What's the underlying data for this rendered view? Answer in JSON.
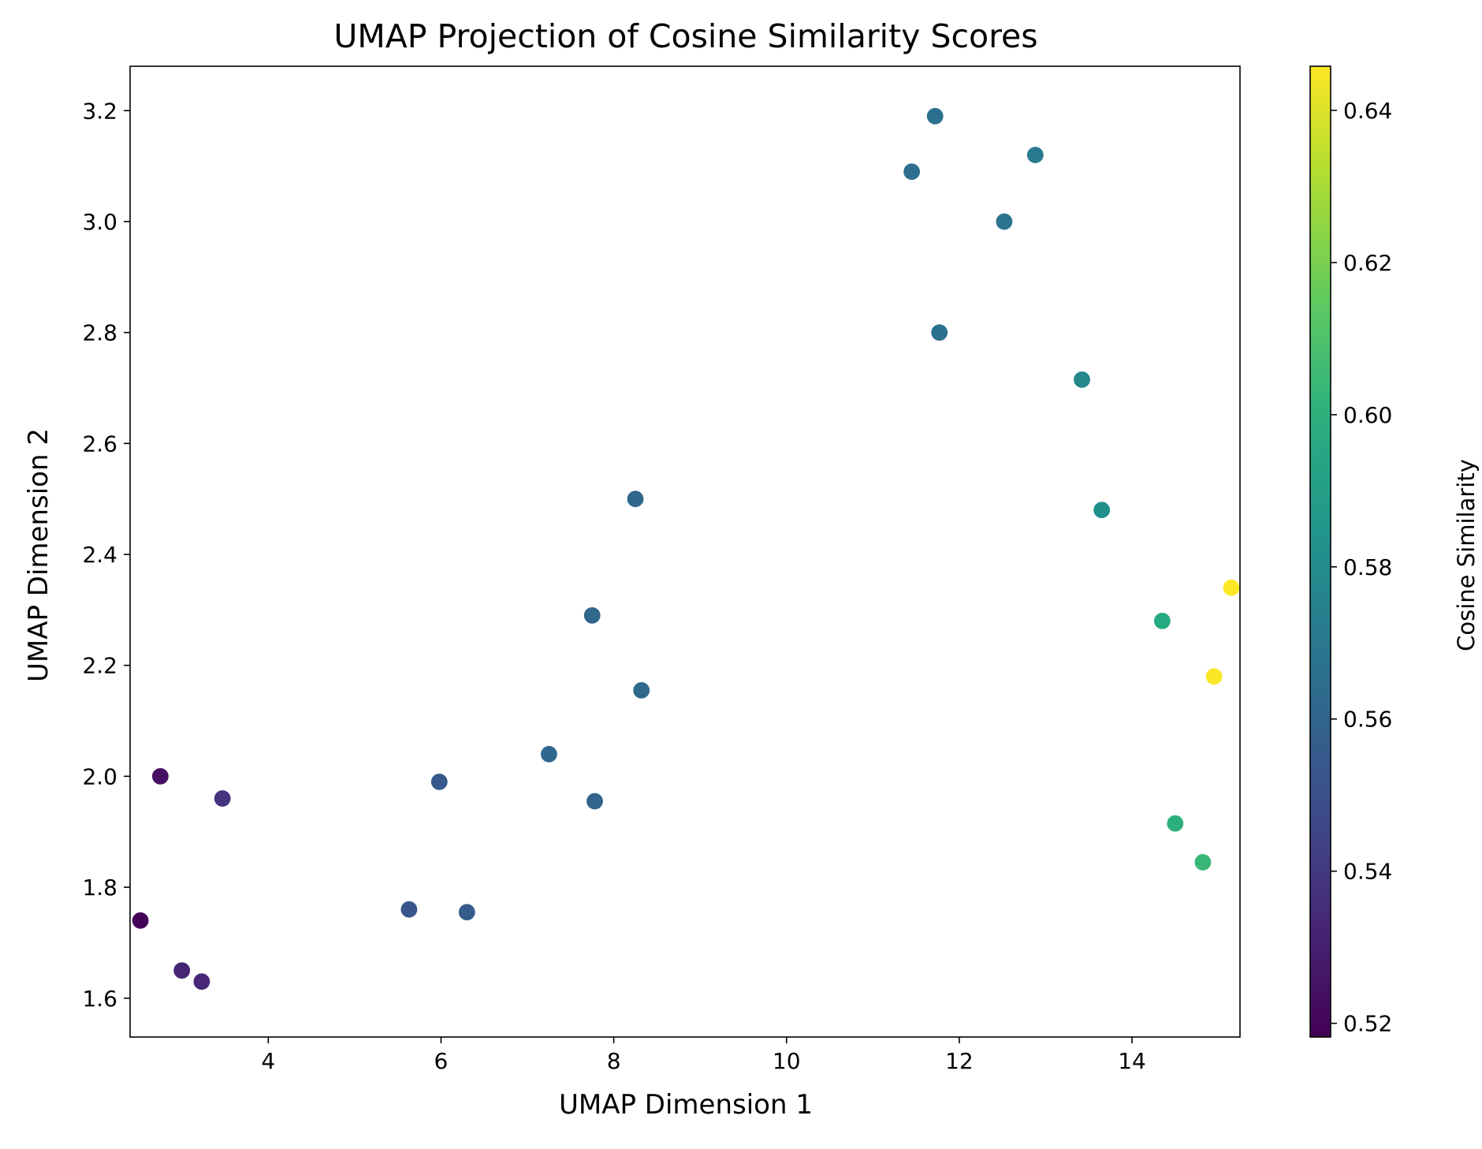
{
  "chart_data": {
    "type": "scatter",
    "title": "UMAP Projection of Cosine Similarity Scores",
    "xlabel": "UMAP Dimension 1",
    "ylabel": "UMAP Dimension 2",
    "xlim": [
      2.4,
      15.25
    ],
    "ylim": [
      1.53,
      3.28
    ],
    "xticks": [
      "4",
      "6",
      "8",
      "10",
      "12",
      "14"
    ],
    "yticks": [
      "1.6",
      "1.8",
      "2.0",
      "2.2",
      "2.4",
      "2.6",
      "2.8",
      "3.0",
      "3.2"
    ],
    "grid": false,
    "colormap": "viridis",
    "colorbar": {
      "label": "Cosine Similarity",
      "range": [
        0.5182,
        0.6458
      ],
      "ticks": [
        "0.52",
        "0.54",
        "0.56",
        "0.58",
        "0.60",
        "0.62",
        "0.64"
      ]
    },
    "points": [
      {
        "x": 2.52,
        "y": 1.74,
        "c": 0.519
      },
      {
        "x": 2.75,
        "y": 2.0,
        "c": 0.524
      },
      {
        "x": 3.0,
        "y": 1.65,
        "c": 0.532
      },
      {
        "x": 3.23,
        "y": 1.63,
        "c": 0.533
      },
      {
        "x": 3.47,
        "y": 1.96,
        "c": 0.538
      },
      {
        "x": 5.63,
        "y": 1.76,
        "c": 0.552
      },
      {
        "x": 5.98,
        "y": 1.99,
        "c": 0.554
      },
      {
        "x": 6.3,
        "y": 1.755,
        "c": 0.556
      },
      {
        "x": 7.25,
        "y": 2.04,
        "c": 0.562
      },
      {
        "x": 7.75,
        "y": 2.29,
        "c": 0.561
      },
      {
        "x": 7.78,
        "y": 1.955,
        "c": 0.56
      },
      {
        "x": 8.25,
        "y": 2.5,
        "c": 0.562
      },
      {
        "x": 8.32,
        "y": 2.155,
        "c": 0.563
      },
      {
        "x": 11.45,
        "y": 3.09,
        "c": 0.565
      },
      {
        "x": 11.72,
        "y": 3.19,
        "c": 0.566
      },
      {
        "x": 11.77,
        "y": 2.8,
        "c": 0.566
      },
      {
        "x": 12.52,
        "y": 3.0,
        "c": 0.568
      },
      {
        "x": 12.88,
        "y": 3.12,
        "c": 0.571
      },
      {
        "x": 13.42,
        "y": 2.715,
        "c": 0.578
      },
      {
        "x": 13.65,
        "y": 2.48,
        "c": 0.582
      },
      {
        "x": 14.35,
        "y": 2.28,
        "c": 0.597
      },
      {
        "x": 14.5,
        "y": 1.915,
        "c": 0.6
      },
      {
        "x": 14.82,
        "y": 1.845,
        "c": 0.604
      },
      {
        "x": 14.95,
        "y": 2.18,
        "c": 0.645
      },
      {
        "x": 15.15,
        "y": 2.34,
        "c": 0.646
      }
    ]
  }
}
